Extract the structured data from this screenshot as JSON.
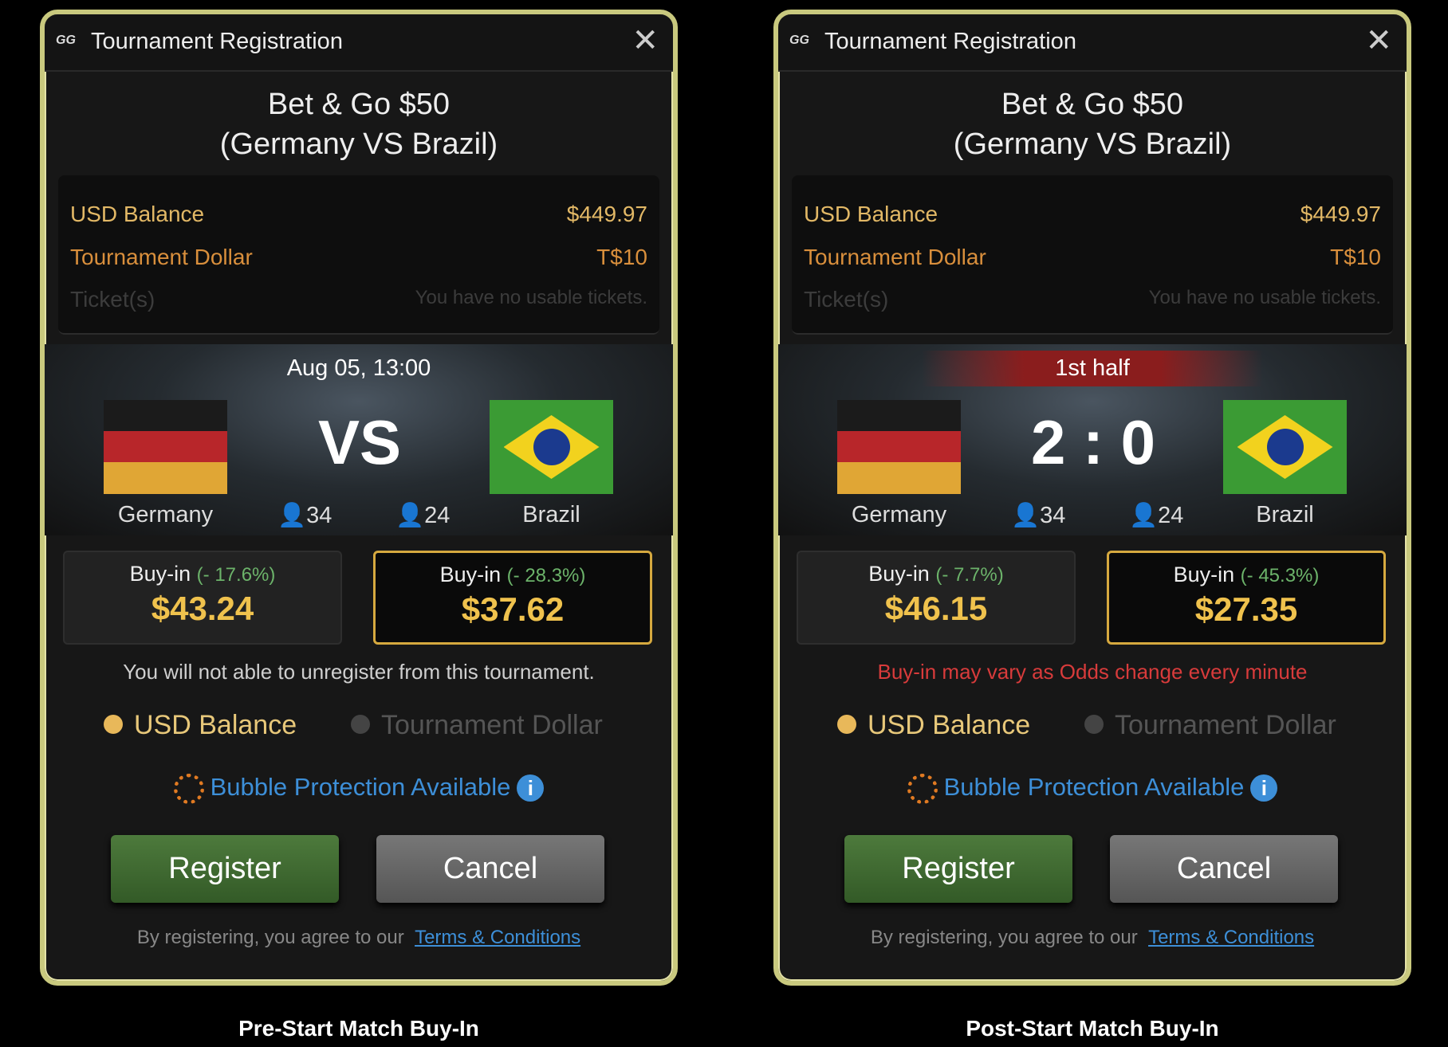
{
  "panels": [
    {
      "caption": "Pre-Start Match Buy-In",
      "window_title": "Tournament Registration",
      "logo": "GG",
      "close": "✕",
      "event_line1": "Bet & Go $50",
      "event_line2": "(Germany VS Brazil)",
      "usd_label": "USD Balance",
      "usd_value": "$449.97",
      "td_label": "Tournament Dollar",
      "td_value": "T$10",
      "tickets_label": "Ticket(s)",
      "tickets_value": "You have no usable tickets.",
      "status": "Aug 05, 13:00",
      "center": "VS",
      "home": "Germany",
      "away": "Brazil",
      "home_count": "34",
      "away_count": "24",
      "buyin_label": "Buy-in",
      "home_pct": "(- 17.6%)",
      "home_price": "$43.24",
      "away_pct": "(- 28.3%)",
      "away_price": "$37.62",
      "selected": "away",
      "note": "You will not able to unregister from this tournament.",
      "note_color": "#cfcfcf",
      "radio_usd": "USD Balance",
      "radio_td": "Tournament Dollar",
      "bubble": "Bubble Protection Available",
      "register": "Register",
      "cancel": "Cancel",
      "terms_prefix": "By registering, you agree to our",
      "terms_link": "Terms & Conditions"
    },
    {
      "caption": "Post-Start Match Buy-In",
      "window_title": "Tournament Registration",
      "logo": "GG",
      "close": "✕",
      "event_line1": "Bet & Go $50",
      "event_line2": "(Germany VS Brazil)",
      "usd_label": "USD Balance",
      "usd_value": "$449.97",
      "td_label": "Tournament Dollar",
      "td_value": "T$10",
      "tickets_label": "Ticket(s)",
      "tickets_value": "You have no usable tickets.",
      "status": "1st half",
      "center": "2 : 0",
      "home": "Germany",
      "away": "Brazil",
      "home_count": "34",
      "away_count": "24",
      "buyin_label": "Buy-in",
      "home_pct": "(- 7.7%)",
      "home_price": "$46.15",
      "away_pct": "(- 45.3%)",
      "away_price": "$27.35",
      "selected": "away",
      "note": "Buy-in may vary as Odds change every minute",
      "note_color": "#d83b3b",
      "radio_usd": "USD Balance",
      "radio_td": "Tournament Dollar",
      "bubble": "Bubble Protection Available",
      "register": "Register",
      "cancel": "Cancel",
      "terms_prefix": "By registering, you agree to our",
      "terms_link": "Terms & Conditions"
    }
  ],
  "colors": {
    "gold": "#f0c24d",
    "green_pct": "#6cb36a",
    "link": "#3d8fd8",
    "border": "#c9c97e"
  }
}
